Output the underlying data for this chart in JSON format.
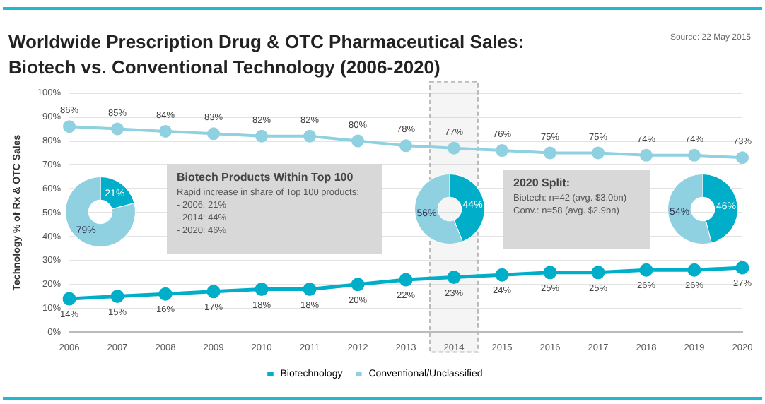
{
  "chart_data": [
    {
      "type": "line",
      "title": "Worldwide Prescription Drug & OTC Pharmaceutical Sales:",
      "subtitle": "Biotech vs. Conventional Technology (2006-2020)",
      "ylabel": "Technology % of Rx & OTC Sales",
      "categories": [
        "2006",
        "2007",
        "2008",
        "2009",
        "2010",
        "2011",
        "2012",
        "2013",
        "2014",
        "2015",
        "2016",
        "2017",
        "2018",
        "2019",
        "2020"
      ],
      "series": [
        {
          "name": "Biotechnology",
          "color": "#00aec9",
          "values": [
            14,
            15,
            16,
            17,
            18,
            18,
            20,
            22,
            23,
            24,
            25,
            25,
            26,
            26,
            27
          ],
          "value_labels": [
            "14%",
            "15%",
            "16%",
            "17%",
            "18%",
            "18%",
            "20%",
            "22%",
            "23%",
            "24%",
            "25%",
            "25%",
            "26%",
            "26%",
            "27%"
          ]
        },
        {
          "name": "Conventional/Unclassified",
          "color": "#8fd1e0",
          "values": [
            86,
            85,
            84,
            83,
            82,
            82,
            80,
            78,
            77,
            76,
            75,
            75,
            74,
            74,
            73
          ],
          "value_labels": [
            "86%",
            "85%",
            "84%",
            "83%",
            "82%",
            "82%",
            "80%",
            "78%",
            "77%",
            "76%",
            "75%",
            "75%",
            "74%",
            "74%",
            "73%"
          ]
        }
      ],
      "ylim": [
        0,
        100
      ],
      "yticks": [
        {
          "value": 0,
          "label": "0%"
        },
        {
          "value": 10,
          "label": "10%"
        },
        {
          "value": 20,
          "label": "20%"
        },
        {
          "value": 30,
          "label": "30%"
        },
        {
          "value": 40,
          "label": "40%"
        },
        {
          "value": 50,
          "label": "50%"
        },
        {
          "value": 60,
          "label": "60%"
        },
        {
          "value": 70,
          "label": "70%"
        },
        {
          "value": 80,
          "label": "80%"
        },
        {
          "value": 90,
          "label": "90%"
        },
        {
          "value": 100,
          "label": "100%"
        }
      ],
      "bands": [
        {
          "axis": "x",
          "from": "2014",
          "to": "2014",
          "color": "#bbbbbb"
        }
      ],
      "grid": "y",
      "legend": "bottom",
      "marker": "circle",
      "annotations": [
        "Source: 22 May 2015",
        "Biotech Products Within Top 100\nRapid increase in share of Top 100 products:\n- 2006: 21%\n- 2014: 44%\n- 2020: 46%",
        "2020 Split:\nBiotech: n=42 (avg. $3.0bn)\nConv.: n=58 (avg. $2.9bn)"
      ]
    },
    {
      "type": "donut",
      "categories": [
        null,
        null
      ],
      "values": [
        21,
        79
      ],
      "colors": [
        "#00aec9",
        "#8fd1e0"
      ],
      "value_labels": [
        "21%",
        "79%"
      ]
    },
    {
      "type": "donut",
      "categories": [
        null,
        null
      ],
      "values": [
        44,
        56
      ],
      "colors": [
        "#00aec9",
        "#8fd1e0"
      ],
      "value_labels": [
        "44%",
        "56%"
      ]
    },
    {
      "type": "donut",
      "categories": [
        null,
        null
      ],
      "values": [
        46,
        54
      ],
      "colors": [
        "#00aec9",
        "#8fd1e0"
      ],
      "value_labels": [
        "46%",
        "54%"
      ]
    }
  ]
}
